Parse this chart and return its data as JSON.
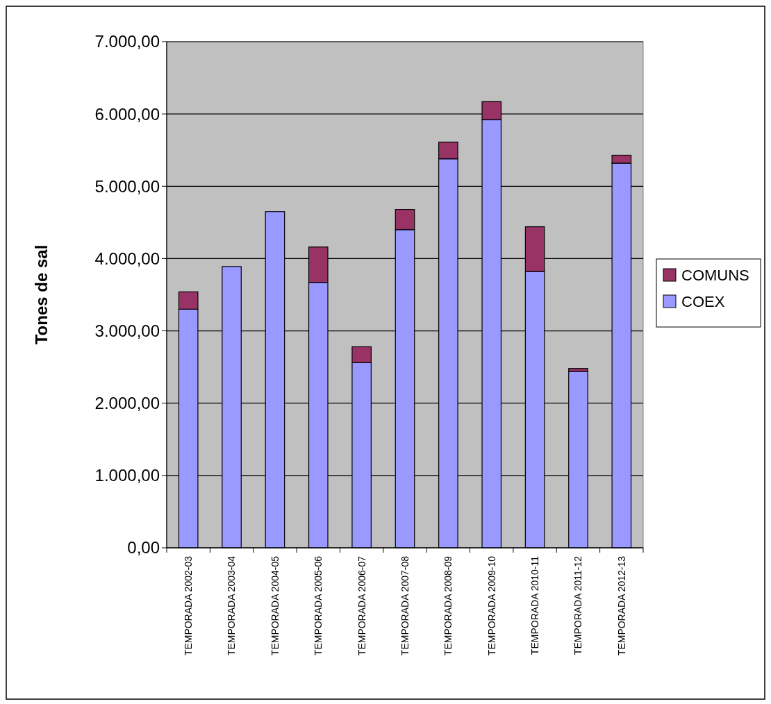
{
  "chart_data": {
    "type": "bar",
    "ylabel": "Tones de sal",
    "stacked": true,
    "grid": "y",
    "legend": "right",
    "categories": [
      "TEMPORADA 2002-03",
      "TEMPORADA 2003-04",
      "TEMPORADA 2004-05",
      "TEMPORADA 2005-06",
      "TEMPORADA 2006-07",
      "TEMPORADA 2007-08",
      "TEMPORADA 2008-09",
      "TEMPORADA 2009-10",
      "TEMPORADA 2010-11",
      "TEMPORADA 2011-12",
      "TEMPORADA 2012-13"
    ],
    "series": [
      {
        "name": "COEX",
        "color": "#9999ff",
        "values": [
          3300,
          3890,
          4650,
          3670,
          2560,
          4400,
          5380,
          5920,
          3820,
          2440,
          5320
        ]
      },
      {
        "name": "COMUNS",
        "color": "#993366",
        "values": [
          240,
          0,
          0,
          490,
          220,
          280,
          230,
          250,
          620,
          40,
          110
        ]
      }
    ],
    "ylim": [
      0,
      7000
    ],
    "yticks": [
      {
        "value": 0,
        "label": "0,00"
      },
      {
        "value": 1000,
        "label": "1.000,00"
      },
      {
        "value": 2000,
        "label": "2.000,00"
      },
      {
        "value": 3000,
        "label": "3.000,00"
      },
      {
        "value": 4000,
        "label": "4.000,00"
      },
      {
        "value": 5000,
        "label": "5.000,00"
      },
      {
        "value": 6000,
        "label": "6.000,00"
      },
      {
        "value": 7000,
        "label": "7.000,00"
      }
    ]
  }
}
